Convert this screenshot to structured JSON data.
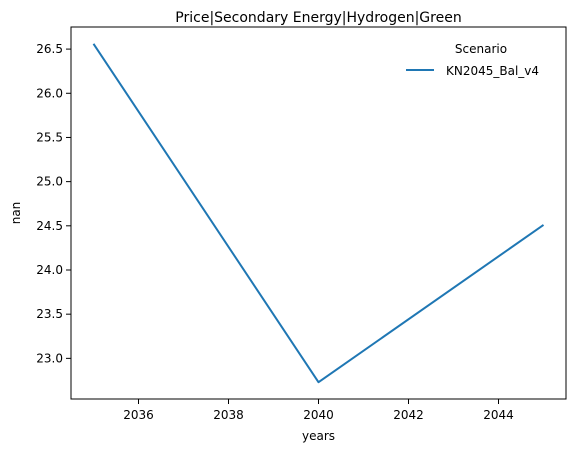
{
  "chart_data": {
    "type": "line",
    "title": "Price|Secondary Energy|Hydrogen|Green",
    "xlabel": "years",
    "ylabel": "nan",
    "xlim": [
      2034.5,
      2045.5
    ],
    "ylim": [
      22.54,
      26.75
    ],
    "xticks": [
      2036,
      2038,
      2040,
      2042,
      2044
    ],
    "yticks": [
      23.0,
      23.5,
      24.0,
      24.5,
      25.0,
      25.5,
      26.0,
      26.5
    ],
    "grid": false,
    "legend": {
      "title": "Scenario",
      "placement": "top-right"
    },
    "series": [
      {
        "name": "KN2045_Bal_v4",
        "color": "#1f77b4",
        "x": [
          2035,
          2040,
          2045
        ],
        "y": [
          26.56,
          22.73,
          24.51
        ]
      }
    ]
  }
}
